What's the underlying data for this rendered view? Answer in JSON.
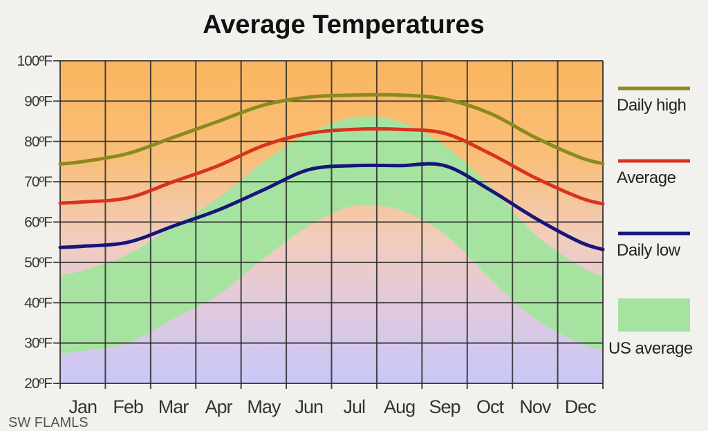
{
  "chart_data": {
    "type": "line",
    "title": "Average Temperatures",
    "xlabel": "",
    "ylabel": "",
    "categories": [
      "Jan",
      "Feb",
      "Mar",
      "Apr",
      "May",
      "Jun",
      "Jul",
      "Aug",
      "Sep",
      "Oct",
      "Nov",
      "Dec"
    ],
    "ylim": [
      20,
      100
    ],
    "y_ticks": [
      "20ºF",
      "30ºF",
      "40ºF",
      "50ºF",
      "60ºF",
      "70ºF",
      "80ºF",
      "90ºF",
      "100ºF"
    ],
    "grid": true,
    "legend_position": "right",
    "series": [
      {
        "name": "Daily high",
        "color": "#8a8a1e",
        "values": [
          75,
          77,
          81,
          85,
          89,
          91,
          91.5,
          91.5,
          90.5,
          87,
          81,
          76
        ]
      },
      {
        "name": "Average",
        "color": "#d9321e",
        "values": [
          65,
          66,
          70,
          74,
          79,
          82,
          83,
          83,
          82,
          77,
          71,
          66
        ]
      },
      {
        "name": "Daily low",
        "color": "#16167a",
        "values": [
          54,
          55,
          59,
          63,
          68,
          73,
          74,
          74,
          74,
          68,
          61,
          55
        ]
      }
    ],
    "band": {
      "name": "US average",
      "color": "#a6e3a0",
      "lower": [
        28,
        30,
        36,
        42,
        51,
        59,
        64,
        63,
        57,
        46,
        36,
        30
      ],
      "upper": [
        48,
        52,
        59,
        66,
        75,
        82,
        86,
        85,
        79,
        69,
        57,
        49
      ]
    }
  },
  "watermark": "SW FLAMLS"
}
